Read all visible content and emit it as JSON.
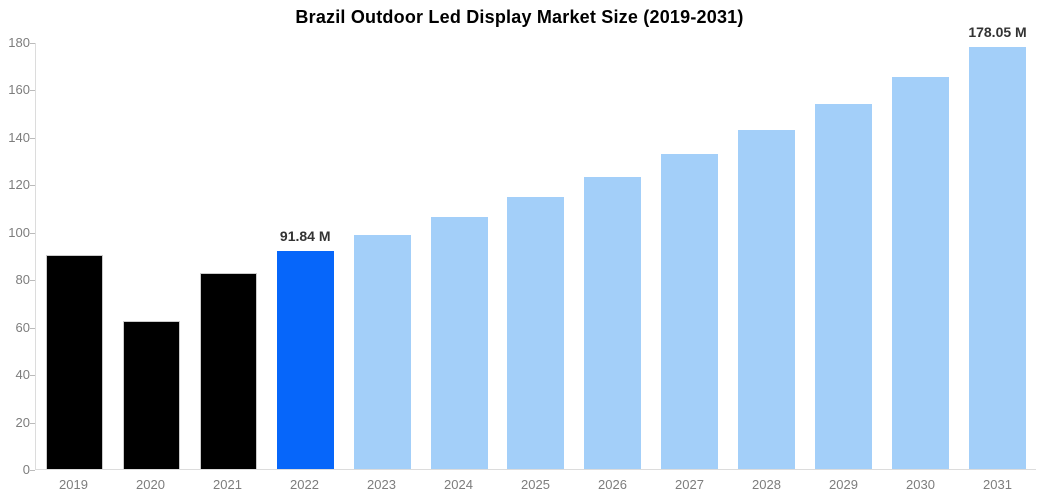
{
  "chart_data": {
    "type": "bar",
    "title": "Brazil Outdoor Led Display Market Size (2019-2031)",
    "categories": [
      "2019",
      "2020",
      "2021",
      "2022",
      "2023",
      "2024",
      "2025",
      "2026",
      "2027",
      "2028",
      "2029",
      "2030",
      "2031"
    ],
    "values": [
      90.4,
      62.6,
      82.5,
      91.84,
      98.85,
      106.4,
      114.52,
      123.26,
      132.67,
      142.8,
      153.7,
      165.43,
      178.05
    ],
    "data_labels": [
      "",
      "",
      "",
      "91.84 M",
      "",
      "",
      "",
      "",
      "",
      "",
      "",
      "",
      "178.05 M"
    ],
    "bar_colors": [
      "#000000",
      "#000000",
      "#000000",
      "#0666FA",
      "#A3CFF9",
      "#A3CFF9",
      "#A3CFF9",
      "#A3CFF9",
      "#A3CFF9",
      "#A3CFF9",
      "#A3CFF9",
      "#A3CFF9",
      "#A3CFF9"
    ],
    "xlabel": "",
    "ylabel": "",
    "ylim": [
      0,
      180
    ],
    "yticks": [
      0,
      20,
      40,
      60,
      80,
      100,
      120,
      140,
      160,
      180
    ],
    "grid": false,
    "legend_position": "none",
    "colors": {
      "highlight_bar": "#0666FA",
      "forecast_bar": "#A3CFF9",
      "historic_bar": "#000000",
      "historic_bar_border": "#cbcbcb",
      "axis_line": "#dcdcdc",
      "tick_mark": "#bbbbbb",
      "axis_text": "#7d7d7d",
      "value_label_text": "#333333",
      "title_text": "#000000",
      "background": "#ffffff"
    }
  }
}
